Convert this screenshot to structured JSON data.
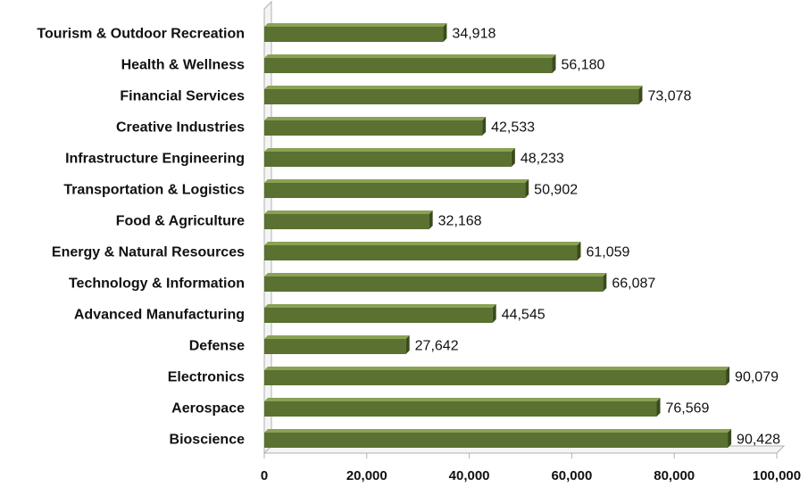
{
  "chart_data": {
    "type": "bar",
    "orientation": "horizontal",
    "style": "3d",
    "categories": [
      "Tourism & Outdoor Recreation",
      "Health & Wellness",
      "Financial Services",
      "Creative Industries",
      "Infrastructure Engineering",
      "Transportation & Logistics",
      "Food & Agriculture",
      "Energy & Natural Resources",
      "Technology & Information",
      "Advanced Manufacturing",
      "Defense",
      "Electronics",
      "Aerospace",
      "Bioscience"
    ],
    "values": [
      34918,
      56180,
      73078,
      42533,
      48233,
      50902,
      32168,
      61059,
      66087,
      44545,
      27642,
      90079,
      76569,
      90428
    ],
    "data_labels": [
      "34,918",
      "56,180",
      "73,078",
      "42,533",
      "48,233",
      "50,902",
      "32,168",
      "61,059",
      "66,087",
      "44,545",
      "27,642",
      "90,079",
      "76,569",
      "90,428"
    ],
    "xlim": [
      0,
      100000
    ],
    "xticks": [
      0,
      20000,
      40000,
      60000,
      80000,
      100000
    ],
    "xtick_labels": [
      "0",
      "20,000",
      "40,000",
      "60,000",
      "80,000",
      "100,000"
    ],
    "title": "",
    "xlabel": "",
    "ylabel": "",
    "grid": false,
    "legend": "none",
    "colors": {
      "bar_front": "#5a7131",
      "bar_top": "#8aa254",
      "bar_side": "#3a4b1c",
      "axis": "#b0b0b0"
    }
  }
}
